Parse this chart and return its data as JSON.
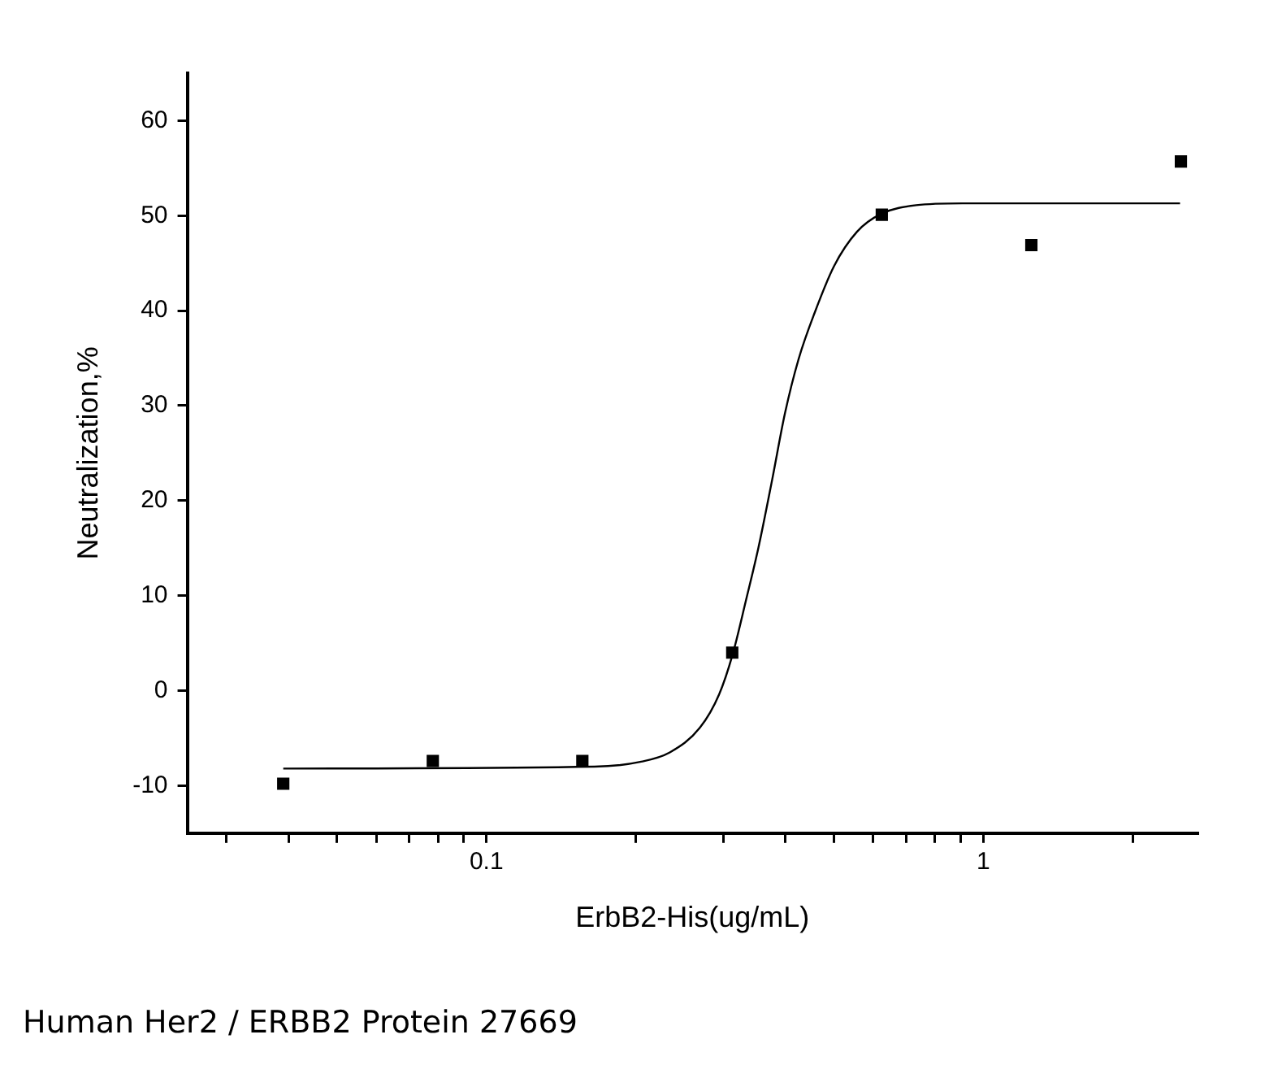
{
  "chart_data": {
    "type": "scatter",
    "xlabel": "ErbB2-His(ug/mL)",
    "ylabel": "Neutralization,%",
    "log": "x",
    "grid": false,
    "legend": false,
    "xlim": [
      0.025,
      2.7
    ],
    "xticks": [
      {
        "value": 0.03,
        "label": null
      },
      {
        "value": 0.04,
        "label": null
      },
      {
        "value": 0.05,
        "label": null
      },
      {
        "value": 0.06,
        "label": null
      },
      {
        "value": 0.07,
        "label": null
      },
      {
        "value": 0.08,
        "label": null
      },
      {
        "value": 0.09,
        "label": null
      },
      0.1,
      {
        "value": 0.2,
        "label": null
      },
      {
        "value": 0.3,
        "label": null
      },
      {
        "value": 0.4,
        "label": null
      },
      {
        "value": 0.5,
        "label": null
      },
      {
        "value": 0.6,
        "label": null
      },
      {
        "value": 0.7,
        "label": null
      },
      {
        "value": 0.8,
        "label": null
      },
      {
        "value": 0.9,
        "label": null
      },
      1,
      {
        "value": 2,
        "label": null
      }
    ],
    "ylim": [
      -15,
      65
    ],
    "yticks": [
      -10,
      0,
      10,
      20,
      30,
      40,
      50,
      60
    ],
    "series": [
      {
        "type": "scatter",
        "color": "#000000",
        "marker": "square",
        "x": [
          0.039,
          0.078,
          0.156,
          0.3125,
          0.625,
          1.25,
          2.5
        ],
        "values": [
          -9.8,
          -7.4,
          -7.4,
          4.0,
          50.1,
          46.9,
          55.7
        ]
      },
      {
        "type": "line",
        "color": "#000000",
        "line_style": "solid",
        "x": [
          0.039,
          0.165,
          0.204,
          0.234,
          0.269,
          0.294,
          0.313,
          0.333,
          0.353,
          0.376,
          0.399,
          0.425,
          0.458,
          0.501,
          0.557,
          0.624,
          0.733,
          0.908,
          2.49
        ],
        "values": [
          -8.2,
          -8.0,
          -7.5,
          -6.5,
          -3.9,
          -0.4,
          3.8,
          9.5,
          15.1,
          22.2,
          29.2,
          34.9,
          39.8,
          44.7,
          48.3,
          50.2,
          51.1,
          51.3,
          51.3
        ]
      }
    ],
    "annotations": [
      "Human Her2 / ERBB2 Protein 27669"
    ]
  }
}
